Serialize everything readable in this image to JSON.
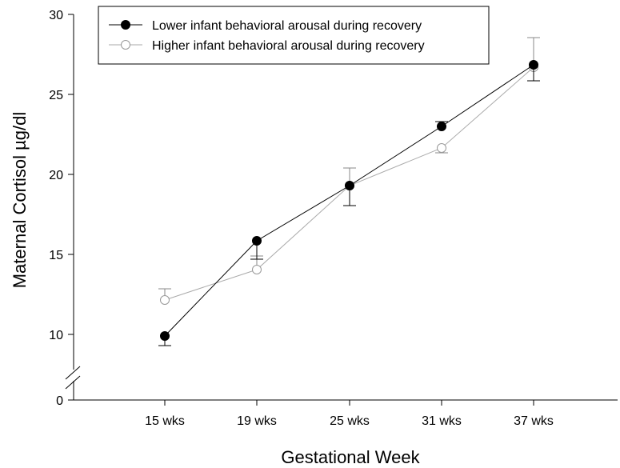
{
  "chart_data": {
    "type": "line",
    "xlabel": "Gestational Week",
    "ylabel": "Maternal Cortisol µg/dl",
    "categories": [
      "15 wks",
      "19 wks",
      "25 wks",
      "31 wks",
      "37 wks"
    ],
    "y_ticks": [
      0,
      10,
      15,
      20,
      25,
      30
    ],
    "ylim": [
      0,
      30
    ],
    "y_axis_break": true,
    "grid": false,
    "legend_position": "top-left",
    "series": [
      {
        "name": "Lower infant behavioral arousal during recovery",
        "marker": "filled-circle",
        "color": "#000000",
        "values": [
          9.9,
          15.85,
          19.3,
          23.0,
          26.85
        ],
        "error_bars": [
          {
            "low": 9.3
          },
          {
            "low": 14.7
          },
          {
            "low": 18.05
          },
          {
            "high": 23.3
          },
          {
            "low": 25.85
          }
        ]
      },
      {
        "name": "Higher infant behavioral arousal during recovery",
        "marker": "open-circle",
        "color": "#aaaaaa",
        "values": [
          12.15,
          14.05,
          19.3,
          21.65,
          26.7
        ],
        "error_bars": [
          {
            "high": 12.85
          },
          {
            "high": 14.9
          },
          {
            "high": 20.4
          },
          {
            "low": 21.35
          },
          {
            "high": 28.55
          }
        ]
      }
    ]
  }
}
